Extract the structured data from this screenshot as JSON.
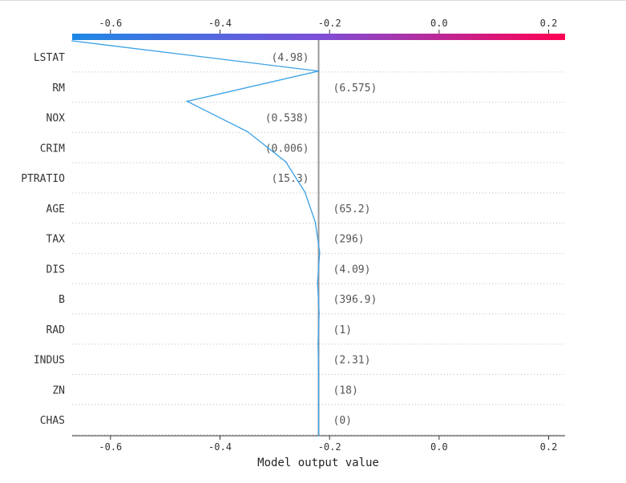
{
  "chart_data": {
    "type": "line",
    "title": "",
    "xlabel": "Model output value",
    "ylabel": "",
    "xlim": [
      -0.67,
      0.23
    ],
    "x_ticks": [
      -0.6,
      -0.4,
      -0.2,
      0.0,
      0.2
    ],
    "x_tick_labels": [
      "-0.6",
      "-0.4",
      "-0.2",
      "0.0",
      "0.2"
    ],
    "base_value": -0.22,
    "colormap": [
      "#1e88e5",
      "#7c4fd8",
      "#ff0052"
    ],
    "line_color": "#39a0e6",
    "features": [
      {
        "name": "LSTAT",
        "value_label": "(4.98)",
        "cumulative_output": -0.67
      },
      {
        "name": "RM",
        "value_label": "(6.575)",
        "cumulative_output": -0.22
      },
      {
        "name": "NOX",
        "value_label": "(0.538)",
        "cumulative_output": -0.46
      },
      {
        "name": "CRIM",
        "value_label": "(0.006)",
        "cumulative_output": -0.35
      },
      {
        "name": "PTRATIO",
        "value_label": "(15.3)",
        "cumulative_output": -0.28
      },
      {
        "name": "AGE",
        "value_label": "(65.2)",
        "cumulative_output": -0.245
      },
      {
        "name": "TAX",
        "value_label": "(296)",
        "cumulative_output": -0.226
      },
      {
        "name": "DIS",
        "value_label": "(4.09)",
        "cumulative_output": -0.218
      },
      {
        "name": "B",
        "value_label": "(396.9)",
        "cumulative_output": -0.222
      },
      {
        "name": "RAD",
        "value_label": "(1)",
        "cumulative_output": -0.219
      },
      {
        "name": "INDUS",
        "value_label": "(2.31)",
        "cumulative_output": -0.221
      },
      {
        "name": "ZN",
        "value_label": "(18)",
        "cumulative_output": -0.22
      },
      {
        "name": "CHAS",
        "value_label": "(0)",
        "cumulative_output": -0.22
      }
    ]
  }
}
